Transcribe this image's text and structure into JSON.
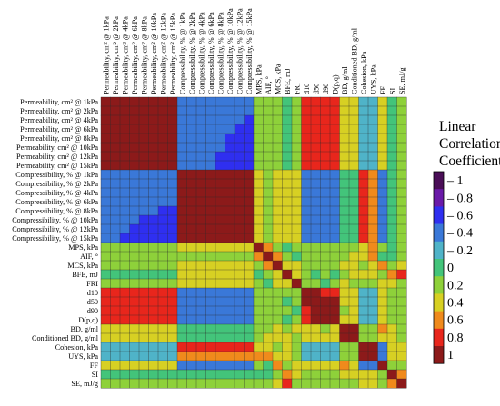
{
  "chart_data": {
    "type": "heatmap",
    "title": "",
    "legend_title": [
      "Linear",
      "Correlation",
      "Coefficient (R)"
    ],
    "colorbar": {
      "ticks": [
        -1,
        -0.8,
        -0.6,
        -0.4,
        -0.2,
        0,
        0.2,
        0.4,
        0.6,
        0.8,
        1
      ],
      "tick_labels": [
        "– 1",
        "– 0.8",
        "– 0.6",
        "– 0.4",
        "– 0.2",
        "0",
        "0.2",
        "0.4",
        "0.6",
        "0.8",
        "1"
      ],
      "range": [
        -1,
        1
      ],
      "colors": [
        "#4a0e57",
        "#6a1aa8",
        "#2f2ff0",
        "#3a78d8",
        "#4fb3c8",
        "#43c47a",
        "#8ed13a",
        "#d7d023",
        "#f08a1c",
        "#e8261c",
        "#8c1a1a"
      ]
    },
    "legend_position": "right",
    "variables": [
      "Permeability, cm² @ 1kPa",
      "Permeability, cm² @ 2kPa",
      "Permeability, cm² @ 4kPa",
      "Permeability, cm² @ 6kPa",
      "Permeability, cm² @ 8kPa",
      "Permeability, cm² @ 10kPa",
      "Permeability, cm² @ 12kPa",
      "Permeability, cm² @ 15kPa",
      "Compressibility, % @ 1kPa",
      "Compressibility, % @ 2kPa",
      "Compressibility, % @ 4kPa",
      "Compressibility, % @ 6kPa",
      "Compressibility, % @ 8kPa",
      "Compressibility, % @ 10kPa",
      "Compressibility, % @ 12kPa",
      "Compressibility, % @ 15kPa",
      "MPS, kPa",
      "AIF, °",
      "MCS, kPa",
      "BFE, mJ",
      "FRI",
      "d10",
      "d50",
      "d90",
      "D(p,q)",
      "BD, g/ml",
      "Conditioned BD, g/ml",
      "Cohesion, kPa",
      "UYS, kPa",
      "FF",
      "SI",
      "SE, mJ/g"
    ],
    "values": [
      [
        1,
        0.99,
        0.98,
        0.97,
        0.97,
        0.96,
        0.96,
        0.95,
        -0.45,
        -0.45,
        -0.48,
        -0.48,
        -0.5,
        -0.5,
        -0.5,
        -0.5,
        0.1,
        0.18,
        0.15,
        0.05,
        0.1,
        0.78,
        0.82,
        0.75,
        0.8,
        0.3,
        0.3,
        -0.3,
        -0.2,
        0.35,
        0.05,
        0.12
      ],
      [
        0.99,
        1,
        0.99,
        0.98,
        0.97,
        0.97,
        0.96,
        0.96,
        -0.45,
        -0.46,
        -0.48,
        -0.48,
        -0.5,
        -0.5,
        -0.5,
        -0.5,
        0.1,
        0.18,
        0.15,
        0.05,
        0.1,
        0.78,
        0.82,
        0.75,
        0.8,
        0.3,
        0.3,
        -0.3,
        -0.2,
        0.35,
        0.05,
        0.12
      ],
      [
        0.98,
        0.99,
        1,
        0.99,
        0.98,
        0.98,
        0.97,
        0.97,
        -0.46,
        -0.46,
        -0.48,
        -0.49,
        -0.5,
        -0.5,
        -0.5,
        -0.52,
        0.1,
        0.18,
        0.15,
        0.05,
        0.1,
        0.78,
        0.82,
        0.75,
        0.8,
        0.3,
        0.3,
        -0.3,
        -0.2,
        0.35,
        0.05,
        0.12
      ],
      [
        0.97,
        0.98,
        0.99,
        1,
        0.99,
        0.98,
        0.98,
        0.97,
        -0.46,
        -0.47,
        -0.48,
        -0.49,
        -0.5,
        -0.5,
        -0.52,
        -0.52,
        0.1,
        0.18,
        0.15,
        0.05,
        0.1,
        0.78,
        0.82,
        0.75,
        0.8,
        0.3,
        0.3,
        -0.3,
        -0.2,
        0.35,
        0.05,
        0.12
      ],
      [
        0.97,
        0.97,
        0.98,
        0.99,
        1,
        0.99,
        0.98,
        0.98,
        -0.47,
        -0.47,
        -0.49,
        -0.49,
        -0.5,
        -0.52,
        -0.52,
        -0.52,
        0.1,
        0.18,
        0.15,
        0.05,
        0.1,
        0.78,
        0.82,
        0.75,
        0.8,
        0.3,
        0.3,
        -0.3,
        -0.2,
        0.35,
        0.05,
        0.12
      ],
      [
        0.96,
        0.97,
        0.98,
        0.98,
        0.99,
        1,
        0.99,
        0.99,
        -0.47,
        -0.48,
        -0.49,
        -0.5,
        -0.5,
        -0.52,
        -0.52,
        -0.53,
        0.1,
        0.18,
        0.15,
        0.05,
        0.1,
        0.78,
        0.82,
        0.75,
        0.8,
        0.3,
        0.3,
        -0.3,
        -0.2,
        0.35,
        0.05,
        0.12
      ],
      [
        0.96,
        0.96,
        0.97,
        0.98,
        0.98,
        0.99,
        1,
        0.99,
        -0.48,
        -0.48,
        -0.5,
        -0.5,
        -0.52,
        -0.52,
        -0.53,
        -0.53,
        0.1,
        0.18,
        0.15,
        0.05,
        0.1,
        0.78,
        0.82,
        0.75,
        0.8,
        0.3,
        0.3,
        -0.3,
        -0.2,
        0.35,
        0.05,
        0.12
      ],
      [
        0.95,
        0.96,
        0.97,
        0.97,
        0.98,
        0.99,
        0.99,
        1,
        -0.48,
        -0.49,
        -0.5,
        -0.5,
        -0.52,
        -0.53,
        -0.53,
        -0.54,
        0.1,
        0.18,
        0.15,
        0.05,
        0.1,
        0.78,
        0.82,
        0.75,
        0.8,
        0.3,
        0.3,
        -0.3,
        -0.2,
        0.35,
        0.05,
        0.12
      ],
      [
        -0.45,
        -0.45,
        -0.46,
        -0.46,
        -0.47,
        -0.47,
        -0.48,
        -0.48,
        1,
        0.99,
        0.98,
        0.97,
        0.96,
        0.95,
        0.95,
        0.94,
        0.35,
        0.28,
        0.3,
        0.42,
        0.3,
        -0.45,
        -0.5,
        -0.45,
        -0.48,
        0.05,
        0.05,
        0.72,
        0.62,
        -0.45,
        0.08,
        0.12
      ],
      [
        -0.45,
        -0.46,
        -0.46,
        -0.47,
        -0.47,
        -0.48,
        -0.48,
        -0.49,
        0.99,
        1,
        0.99,
        0.98,
        0.97,
        0.96,
        0.95,
        0.95,
        0.35,
        0.28,
        0.3,
        0.42,
        0.3,
        -0.45,
        -0.5,
        -0.45,
        -0.48,
        0.05,
        0.05,
        0.72,
        0.62,
        -0.45,
        0.08,
        0.12
      ],
      [
        -0.48,
        -0.48,
        -0.48,
        -0.48,
        -0.49,
        -0.49,
        -0.5,
        -0.5,
        0.98,
        0.99,
        1,
        0.99,
        0.98,
        0.97,
        0.96,
        0.96,
        0.35,
        0.28,
        0.3,
        0.42,
        0.3,
        -0.45,
        -0.5,
        -0.45,
        -0.48,
        0.05,
        0.05,
        0.72,
        0.62,
        -0.45,
        0.08,
        0.12
      ],
      [
        -0.48,
        -0.48,
        -0.49,
        -0.49,
        -0.49,
        -0.5,
        -0.5,
        -0.5,
        0.97,
        0.98,
        0.99,
        1,
        0.99,
        0.98,
        0.97,
        0.97,
        0.35,
        0.28,
        0.3,
        0.42,
        0.3,
        -0.45,
        -0.5,
        -0.45,
        -0.48,
        0.05,
        0.05,
        0.72,
        0.62,
        -0.45,
        0.08,
        0.12
      ],
      [
        -0.5,
        -0.5,
        -0.5,
        -0.5,
        -0.5,
        -0.5,
        -0.52,
        -0.52,
        0.96,
        0.97,
        0.98,
        0.99,
        1,
        0.99,
        0.98,
        0.98,
        0.35,
        0.28,
        0.3,
        0.42,
        0.3,
        -0.45,
        -0.5,
        -0.45,
        -0.48,
        0.05,
        0.05,
        0.72,
        0.62,
        -0.45,
        0.08,
        0.12
      ],
      [
        -0.5,
        -0.5,
        -0.5,
        -0.5,
        -0.52,
        -0.52,
        -0.52,
        -0.53,
        0.95,
        0.96,
        0.97,
        0.98,
        0.99,
        1,
        0.99,
        0.99,
        0.35,
        0.28,
        0.3,
        0.42,
        0.3,
        -0.45,
        -0.5,
        -0.45,
        -0.48,
        0.05,
        0.05,
        0.72,
        0.62,
        -0.45,
        0.08,
        0.12
      ],
      [
        -0.5,
        -0.5,
        -0.5,
        -0.52,
        -0.52,
        -0.52,
        -0.53,
        -0.53,
        0.95,
        0.95,
        0.96,
        0.97,
        0.98,
        0.99,
        1,
        0.99,
        0.35,
        0.28,
        0.3,
        0.42,
        0.3,
        -0.45,
        -0.5,
        -0.45,
        -0.48,
        0.05,
        0.05,
        0.72,
        0.62,
        -0.45,
        0.08,
        0.12
      ],
      [
        -0.5,
        -0.5,
        -0.52,
        -0.52,
        -0.52,
        -0.53,
        -0.53,
        -0.54,
        0.94,
        0.95,
        0.96,
        0.97,
        0.98,
        0.99,
        0.99,
        1,
        0.35,
        0.28,
        0.3,
        0.42,
        0.3,
        -0.45,
        -0.5,
        -0.45,
        -0.48,
        0.05,
        0.05,
        0.72,
        0.62,
        -0.45,
        0.08,
        0.12
      ],
      [
        0.1,
        0.1,
        0.1,
        0.1,
        0.1,
        0.1,
        0.1,
        0.1,
        0.35,
        0.35,
        0.35,
        0.35,
        0.35,
        0.35,
        0.35,
        0.35,
        1,
        0.62,
        0.2,
        0.05,
        0.1,
        0.1,
        0.15,
        0.1,
        0.12,
        0.2,
        0.28,
        0.45,
        0.55,
        0.1,
        0.05,
        0.1
      ],
      [
        0.18,
        0.18,
        0.18,
        0.18,
        0.18,
        0.18,
        0.18,
        0.18,
        0.28,
        0.28,
        0.28,
        0.28,
        0.28,
        0.28,
        0.28,
        0.28,
        0.62,
        1,
        0.55,
        0.1,
        0.05,
        0.15,
        0.2,
        0.15,
        0.18,
        0.25,
        0.3,
        0.4,
        0.5,
        0.05,
        0.0,
        0.12
      ],
      [
        0.15,
        0.15,
        0.15,
        0.15,
        0.15,
        0.15,
        0.15,
        0.15,
        0.3,
        0.3,
        0.3,
        0.3,
        0.3,
        0.3,
        0.3,
        0.3,
        0.2,
        0.55,
        1,
        0.3,
        0.4,
        0.2,
        0.25,
        0.2,
        0.22,
        0.42,
        0.35,
        0.25,
        0.35,
        0.5,
        0.2,
        0.3
      ],
      [
        0.05,
        0.05,
        0.05,
        0.05,
        0.05,
        0.05,
        0.05,
        0.05,
        0.42,
        0.42,
        0.42,
        0.42,
        0.42,
        0.42,
        0.42,
        0.42,
        0.05,
        0.1,
        0.3,
        1,
        0.3,
        0.1,
        0.05,
        0.1,
        0.08,
        0.2,
        0.3,
        0.35,
        0.4,
        0.1,
        0.5,
        0.7
      ],
      [
        0.1,
        0.1,
        0.1,
        0.1,
        0.1,
        0.1,
        0.1,
        0.1,
        0.3,
        0.3,
        0.3,
        0.3,
        0.3,
        0.3,
        0.3,
        0.3,
        0.1,
        0.05,
        0.4,
        0.3,
        1,
        0.15,
        0.1,
        0.05,
        0.1,
        0.3,
        0.25,
        0.2,
        0.25,
        0.3,
        0.4,
        0.2
      ],
      [
        0.78,
        0.78,
        0.78,
        0.78,
        0.78,
        0.78,
        0.78,
        0.78,
        -0.45,
        -0.45,
        -0.45,
        -0.45,
        -0.45,
        -0.45,
        -0.45,
        -0.45,
        0.1,
        0.15,
        0.2,
        0.1,
        0.15,
        1,
        0.9,
        0.82,
        0.88,
        0.3,
        0.35,
        -0.25,
        -0.2,
        0.4,
        0.1,
        0.15
      ],
      [
        0.82,
        0.82,
        0.82,
        0.82,
        0.82,
        0.82,
        0.82,
        0.82,
        -0.5,
        -0.5,
        -0.5,
        -0.5,
        -0.5,
        -0.5,
        -0.5,
        -0.5,
        0.15,
        0.2,
        0.25,
        0.05,
        0.1,
        0.9,
        1,
        0.92,
        0.95,
        0.3,
        0.35,
        -0.3,
        -0.25,
        0.45,
        0.1,
        0.15
      ],
      [
        0.75,
        0.75,
        0.75,
        0.75,
        0.75,
        0.75,
        0.75,
        0.75,
        -0.45,
        -0.45,
        -0.45,
        -0.45,
        -0.45,
        -0.45,
        -0.45,
        -0.45,
        0.1,
        0.15,
        0.2,
        0.1,
        0.05,
        0.82,
        0.92,
        1,
        0.9,
        0.25,
        0.3,
        -0.25,
        -0.2,
        0.4,
        0.1,
        0.15
      ],
      [
        0.8,
        0.8,
        0.8,
        0.8,
        0.8,
        0.8,
        0.8,
        0.8,
        -0.48,
        -0.48,
        -0.48,
        -0.48,
        -0.48,
        -0.48,
        -0.48,
        -0.48,
        0.12,
        0.18,
        0.22,
        0.08,
        0.1,
        0.88,
        0.95,
        0.9,
        1,
        0.3,
        0.35,
        -0.28,
        -0.22,
        0.42,
        0.1,
        0.15
      ],
      [
        0.3,
        0.3,
        0.3,
        0.3,
        0.3,
        0.3,
        0.3,
        0.3,
        0.05,
        0.05,
        0.05,
        0.05,
        0.05,
        0.05,
        0.05,
        0.05,
        0.2,
        0.25,
        0.42,
        0.2,
        0.3,
        0.3,
        0.3,
        0.25,
        0.3,
        1,
        0.9,
        0.1,
        0.15,
        0.5,
        0.3,
        0.2
      ],
      [
        0.3,
        0.3,
        0.3,
        0.3,
        0.3,
        0.3,
        0.3,
        0.3,
        0.05,
        0.05,
        0.05,
        0.05,
        0.05,
        0.05,
        0.05,
        0.05,
        0.28,
        0.3,
        0.35,
        0.3,
        0.25,
        0.35,
        0.35,
        0.3,
        0.35,
        0.9,
        1,
        0.15,
        0.2,
        0.45,
        0.3,
        0.25
      ],
      [
        -0.3,
        -0.3,
        -0.3,
        -0.3,
        -0.3,
        -0.3,
        -0.3,
        -0.3,
        0.72,
        0.72,
        0.72,
        0.72,
        0.72,
        0.72,
        0.72,
        0.72,
        0.45,
        0.4,
        0.25,
        0.35,
        0.2,
        -0.25,
        -0.3,
        -0.25,
        -0.28,
        0.1,
        0.15,
        1,
        0.92,
        -0.45,
        0.3,
        0.4
      ],
      [
        -0.2,
        -0.2,
        -0.2,
        -0.2,
        -0.2,
        -0.2,
        -0.2,
        -0.2,
        0.62,
        0.62,
        0.62,
        0.62,
        0.62,
        0.62,
        0.62,
        0.62,
        0.55,
        0.5,
        0.35,
        0.4,
        0.25,
        -0.2,
        -0.25,
        -0.2,
        -0.22,
        0.15,
        0.2,
        0.92,
        1,
        -0.35,
        0.35,
        0.45
      ],
      [
        0.35,
        0.35,
        0.35,
        0.35,
        0.35,
        0.35,
        0.35,
        0.35,
        -0.45,
        -0.45,
        -0.45,
        -0.45,
        -0.45,
        -0.45,
        -0.45,
        -0.45,
        0.1,
        0.05,
        0.5,
        0.1,
        0.3,
        0.4,
        0.45,
        0.4,
        0.42,
        0.5,
        0.45,
        -0.45,
        -0.35,
        1,
        0.2,
        0.1
      ],
      [
        0.05,
        0.05,
        0.05,
        0.05,
        0.05,
        0.05,
        0.05,
        0.05,
        0.08,
        0.08,
        0.08,
        0.08,
        0.08,
        0.08,
        0.08,
        0.08,
        0.05,
        0.0,
        0.2,
        0.5,
        0.4,
        0.1,
        0.1,
        0.1,
        0.1,
        0.3,
        0.3,
        0.3,
        0.35,
        0.2,
        1,
        0.55
      ],
      [
        0.12,
        0.12,
        0.12,
        0.12,
        0.12,
        0.12,
        0.12,
        0.12,
        0.12,
        0.12,
        0.12,
        0.12,
        0.12,
        0.12,
        0.12,
        0.12,
        0.1,
        0.12,
        0.3,
        0.7,
        0.2,
        0.15,
        0.15,
        0.15,
        0.15,
        0.2,
        0.25,
        0.4,
        0.45,
        0.1,
        0.55,
        1
      ]
    ]
  }
}
